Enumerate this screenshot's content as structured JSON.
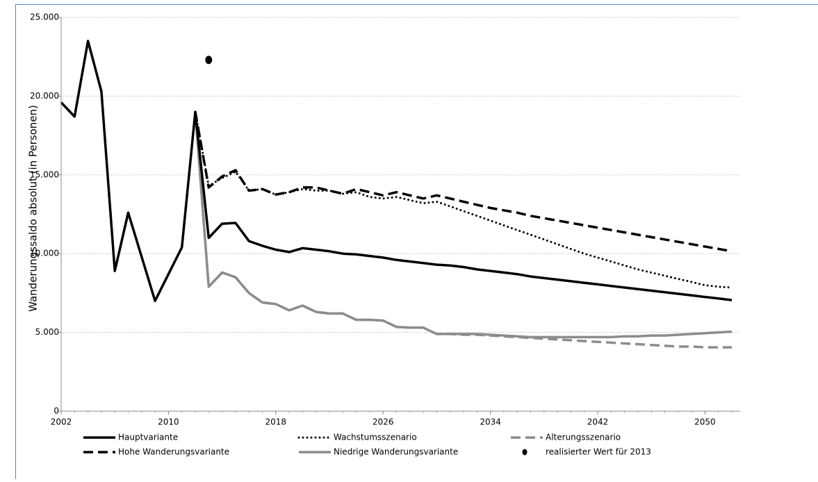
{
  "chart_data": {
    "type": "line",
    "y_label": "Wanderungssaldo absolut (in  Personen)",
    "x": [
      2002,
      2003,
      2004,
      2005,
      2006,
      2007,
      2008,
      2009,
      2010,
      2011,
      2012,
      2013,
      2014,
      2015,
      2016,
      2017,
      2018,
      2019,
      2020,
      2021,
      2022,
      2023,
      2024,
      2025,
      2026,
      2027,
      2028,
      2029,
      2030,
      2031,
      2032,
      2033,
      2034,
      2035,
      2036,
      2037,
      2038,
      2039,
      2040,
      2041,
      2042,
      2043,
      2044,
      2045,
      2046,
      2047,
      2048,
      2049,
      2050,
      2051,
      2052
    ],
    "xlim": [
      2002,
      2052
    ],
    "xticks": [
      2002,
      2010,
      2018,
      2026,
      2034,
      2042,
      2050
    ],
    "ylim": [
      0,
      25000
    ],
    "yticks": [
      0,
      {
        "value": 5000,
        "label": "5.000"
      },
      {
        "value": 10000,
        "label": "10.000"
      },
      {
        "value": 15000,
        "label": "15.000"
      },
      {
        "value": 20000,
        "label": "20.000"
      },
      {
        "value": 25000,
        "label": "25.000"
      }
    ],
    "grid": true,
    "series": [
      {
        "name": "Hauptvariante",
        "color": "#000000",
        "style": "solid",
        "values": [
          19600,
          18700,
          23500,
          20300,
          8900,
          12600,
          9800,
          7000,
          8700,
          10400,
          19000,
          11000,
          11900,
          11950,
          10800,
          10500,
          10250,
          10100,
          10350,
          10250,
          10150,
          10000,
          9950,
          9850,
          9750,
          9600,
          9500,
          9400,
          9300,
          9250,
          9150,
          9000,
          8900,
          8800,
          8700,
          8550,
          8450,
          8350,
          8250,
          8150,
          8050,
          7950,
          7850,
          7750,
          7650,
          7550,
          7450,
          7350,
          7250,
          7150,
          7050
        ]
      },
      {
        "name": "Wachstumsszenario",
        "color": "#000000",
        "style": "dotted",
        "values": [
          null,
          null,
          null,
          null,
          null,
          null,
          null,
          null,
          null,
          null,
          19000,
          14300,
          14800,
          15200,
          14000,
          14100,
          13750,
          13900,
          14100,
          14000,
          14000,
          13800,
          13900,
          13600,
          13500,
          13600,
          13400,
          13200,
          13300,
          13000,
          12700,
          12400,
          12100,
          11800,
          11500,
          11200,
          10900,
          10600,
          10300,
          10000,
          9750,
          9500,
          9250,
          9000,
          8800,
          8600,
          8400,
          8200,
          8000,
          7900,
          7850
        ]
      },
      {
        "name": "Alterungsszenario",
        "color": "#8c8c8c",
        "style": "dashed",
        "values": [
          null,
          null,
          null,
          null,
          null,
          null,
          null,
          null,
          null,
          null,
          19000,
          7900,
          8800,
          8500,
          7500,
          6900,
          6800,
          6400,
          6700,
          6300,
          6200,
          6200,
          5800,
          5800,
          5750,
          5350,
          5300,
          5300,
          4900,
          4900,
          4850,
          4850,
          4800,
          4750,
          4700,
          4650,
          4600,
          4550,
          4500,
          4450,
          4400,
          4350,
          4300,
          4250,
          4200,
          4150,
          4100,
          4100,
          4050,
          4050,
          4050
        ]
      },
      {
        "name": "Hohe Wanderungsvariante",
        "color": "#000000",
        "style": "dashed",
        "values": [
          null,
          null,
          null,
          null,
          null,
          null,
          null,
          null,
          null,
          null,
          19000,
          14200,
          14900,
          15300,
          14000,
          14100,
          13750,
          13900,
          14200,
          14200,
          14000,
          13800,
          14100,
          13900,
          13700,
          13900,
          13700,
          13500,
          13700,
          13500,
          13300,
          13100,
          12900,
          12750,
          12600,
          12400,
          12250,
          12100,
          11950,
          11800,
          11650,
          11500,
          11350,
          11200,
          11050,
          10900,
          10750,
          10600,
          10450,
          10300,
          10150
        ]
      },
      {
        "name": "Niedrige Wanderungsvariante",
        "color": "#8c8c8c",
        "style": "solid",
        "values": [
          null,
          null,
          null,
          null,
          null,
          null,
          null,
          null,
          null,
          null,
          19000,
          7900,
          8800,
          8500,
          7500,
          6900,
          6800,
          6400,
          6700,
          6300,
          6200,
          6200,
          5800,
          5800,
          5750,
          5350,
          5300,
          5300,
          4900,
          4900,
          4900,
          4900,
          4850,
          4800,
          4750,
          4700,
          4700,
          4700,
          4700,
          4700,
          4700,
          4700,
          4750,
          4750,
          4800,
          4800,
          4850,
          4900,
          4950,
          5000,
          5050
        ]
      },
      {
        "name": "realisierter Wert für 2013",
        "color": "#000000",
        "style": "marker",
        "x": [
          2013
        ],
        "values": [
          22300
        ]
      }
    ]
  }
}
